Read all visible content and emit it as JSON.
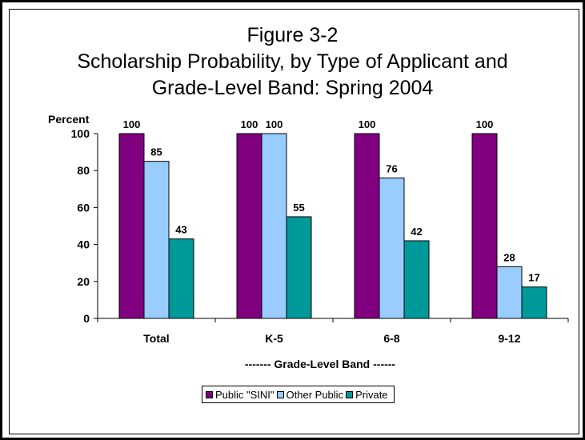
{
  "chart_data": {
    "type": "bar",
    "title_lines": [
      "Figure 3-2",
      "Scholarship Probability, by Type of Applicant and",
      "Grade-Level Band: Spring 2004"
    ],
    "ylabel": "Percent",
    "xlabel": "------- Grade-Level Band ------",
    "categories": [
      "Total",
      "K-5",
      "6-8",
      "9-12"
    ],
    "ylim": [
      0,
      100
    ],
    "yticks": [
      0,
      20,
      40,
      60,
      80,
      100
    ],
    "grid": false,
    "legend_position": "bottom",
    "series": [
      {
        "name": "Public \"SINI\"",
        "color": "#800080",
        "values": [
          100,
          100,
          100,
          100
        ]
      },
      {
        "name": "Other Public",
        "color": "#99ccff",
        "values": [
          85,
          100,
          76,
          28
        ]
      },
      {
        "name": "Private",
        "color": "#009999",
        "values": [
          43,
          55,
          42,
          17
        ]
      }
    ],
    "data_labels": [
      [
        "100",
        "100",
        "100",
        "100"
      ],
      [
        "85",
        "100",
        "76",
        "28"
      ],
      [
        "43",
        "55",
        "42",
        "17"
      ]
    ]
  }
}
